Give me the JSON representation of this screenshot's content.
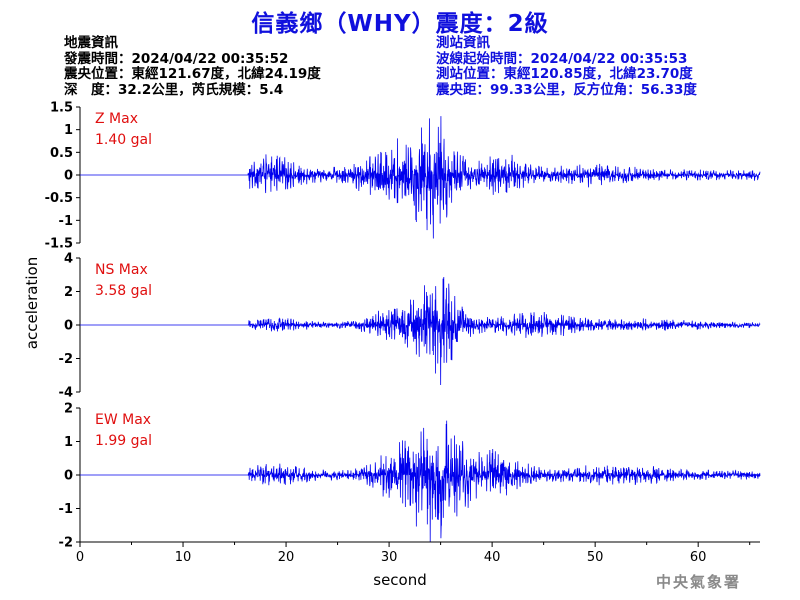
{
  "title": "信義鄉（WHY）震度：2級",
  "info_left": {
    "heading": "地震資訊",
    "origin_time": "發震時間：2024/04/22 00:35:52",
    "epicenter": "震央位置：東經121.67度，北緯24.19度",
    "depth_magnitude": "深　度：32.2公里，芮氏規模：5.4"
  },
  "info_right": {
    "heading": "測站資訊",
    "wave_onset": "波線起始時間：2024/04/22 00:35:53",
    "station_location": "測站位置：東經120.85度，北緯23.70度",
    "distance_azimuth": "震央距：99.33公里，反方位角：56.33度"
  },
  "agency": "中央氣象署",
  "colors": {
    "title": "#1010dd",
    "trace": "#0000ee",
    "max_label": "#e01010",
    "axis": "#000000",
    "agency": "#8a8a8a"
  },
  "chart_data": [
    {
      "type": "line",
      "component": "Z",
      "max_label": "Z Max",
      "max_value_text": "1.40 gal",
      "peak": 1.4,
      "ylim": [
        -1.5,
        1.5
      ],
      "yticks": [
        -1.5,
        -1,
        -0.5,
        0,
        0.5,
        1,
        1.5
      ],
      "ytick_labels": [
        "-1.5",
        "-1",
        "-0.5",
        "0",
        "0.5",
        "1",
        "1.5"
      ],
      "xlim": [
        0,
        66
      ]
    },
    {
      "type": "line",
      "component": "NS",
      "max_label": "NS Max",
      "max_value_text": "3.58 gal",
      "peak": 3.58,
      "ylim": [
        -4,
        4
      ],
      "yticks": [
        -4,
        -2,
        0,
        2,
        4
      ],
      "ytick_labels": [
        "-4",
        "-2",
        "0",
        "2",
        "4"
      ],
      "xlim": [
        0,
        66
      ]
    },
    {
      "type": "line",
      "component": "EW",
      "max_label": "EW Max",
      "max_value_text": "1.99 gal",
      "peak": 1.99,
      "ylim": [
        -2,
        2
      ],
      "yticks": [
        -2,
        -1,
        0,
        1,
        2
      ],
      "ytick_labels": [
        "-2",
        "-1",
        "0",
        "1",
        "2"
      ],
      "xlim": [
        0,
        66
      ]
    }
  ],
  "x_axis": {
    "label": "second",
    "ticks": [
      0,
      10,
      20,
      30,
      40,
      50,
      60
    ],
    "tick_labels": [
      "0",
      "10",
      "20",
      "30",
      "40",
      "50",
      "60"
    ]
  },
  "y_axis_label": "acceleration"
}
